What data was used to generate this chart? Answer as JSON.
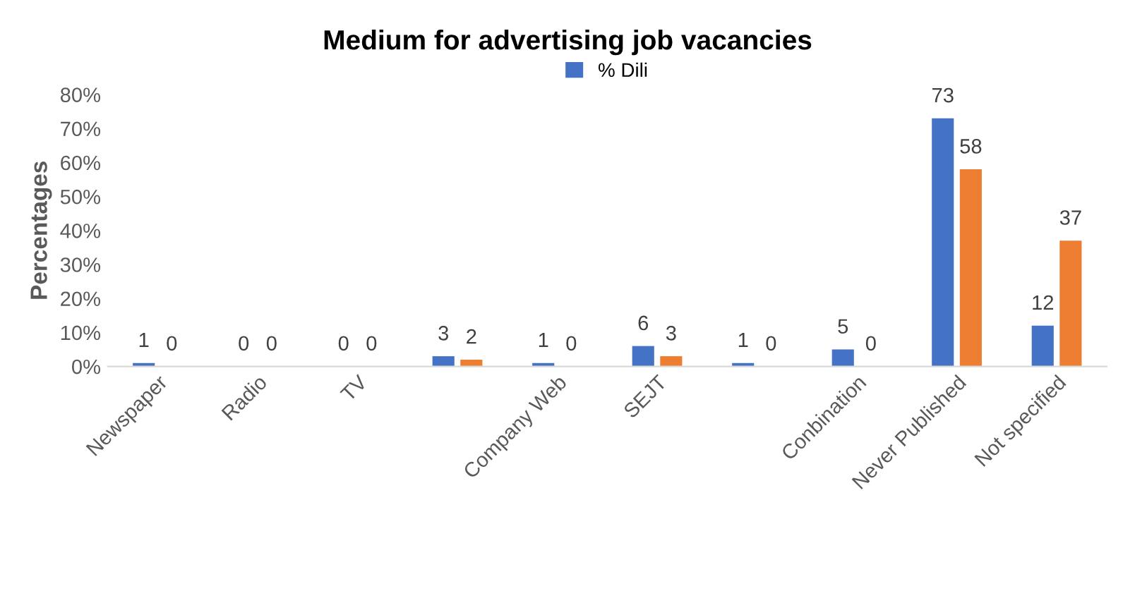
{
  "chart_data": {
    "type": "bar",
    "title": "Medium for advertising job vacancies",
    "ylabel": "Percentages",
    "categories": [
      "Newspaper",
      "Radio",
      "TV",
      null,
      "Company Web",
      "SEJT",
      null,
      "Conbination",
      "Never Published",
      "Not specified"
    ],
    "series": [
      {
        "name": "% Dili",
        "color": "#4472c4",
        "values": [
          1,
          0,
          0,
          3,
          1,
          6,
          1,
          5,
          73,
          12
        ]
      },
      {
        "color": "#ed7d31",
        "values": [
          0,
          0,
          0,
          2,
          0,
          3,
          0,
          0,
          58,
          37
        ]
      }
    ],
    "ylim": [
      0,
      80
    ],
    "yticks": [
      {
        "value": 0,
        "label": "0%"
      },
      {
        "value": 10,
        "label": "10%"
      },
      {
        "value": 20,
        "label": "20%"
      },
      {
        "value": 30,
        "label": "30%"
      },
      {
        "value": 40,
        "label": "40%"
      },
      {
        "value": 50,
        "label": "50%"
      },
      {
        "value": 60,
        "label": "60%"
      },
      {
        "value": 70,
        "label": "70%"
      },
      {
        "value": 80,
        "label": "80%"
      }
    ],
    "data_labels": true,
    "legend": "top",
    "grid": false
  }
}
